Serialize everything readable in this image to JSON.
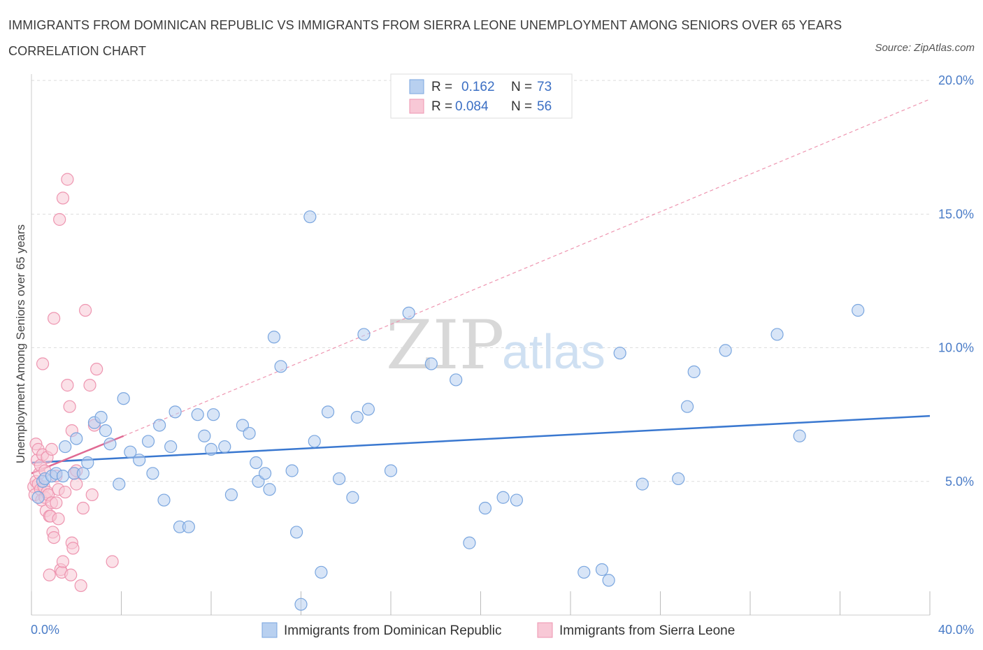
{
  "title": "IMMIGRANTS FROM DOMINICAN REPUBLIC VS IMMIGRANTS FROM SIERRA LEONE UNEMPLOYMENT AMONG SENIORS OVER 65 YEARS CORRELATION CHART",
  "source": "Source: ZipAtlas.com",
  "watermark": {
    "zip": "ZIP",
    "atlas": "atlas"
  },
  "colors": {
    "blue_fill": "#b8d0f0",
    "blue_stroke": "#7aa6df",
    "blue_line": "#3a78d0",
    "pink_fill": "#f8c8d6",
    "pink_stroke": "#ee95b0",
    "pink_line": "#e06a93",
    "grid": "#dddddd",
    "axis_text": "#4a7cc7"
  },
  "legend": {
    "r_label": "R =",
    "n_label": "N =",
    "series1": {
      "r": "0.162",
      "n": "73"
    },
    "series2": {
      "r": "0.084",
      "n": "56"
    }
  },
  "chart_data": {
    "type": "scatter",
    "title": "IMMIGRANTS FROM DOMINICAN REPUBLIC VS IMMIGRANTS FROM SIERRA LEONE UNEMPLOYMENT AMONG SENIORS OVER 65 YEARS CORRELATION CHART",
    "xlabel": "",
    "ylabel": "Unemployment Among Seniors over 65 years",
    "xlim": [
      0,
      40
    ],
    "ylim": [
      0,
      20.5
    ],
    "x_tick_labels": {
      "left": "0.0%",
      "right": "40.0%"
    },
    "y_ticks": [
      5,
      10,
      15,
      20
    ],
    "y_tick_labels": [
      "5.0%",
      "10.0%",
      "15.0%",
      "20.0%"
    ],
    "grid": true,
    "legend_position": "top-center",
    "series": [
      {
        "name": "Immigrants from Dominican Republic",
        "color": "blue",
        "r": 0.162,
        "n": 73,
        "trend": {
          "x": [
            0,
            40
          ],
          "y": [
            5.7,
            7.45
          ]
        },
        "points": [
          [
            0.3,
            4.4
          ],
          [
            0.5,
            5.0
          ],
          [
            0.6,
            5.1
          ],
          [
            0.9,
            5.2
          ],
          [
            1.1,
            5.3
          ],
          [
            1.4,
            5.2
          ],
          [
            1.5,
            6.3
          ],
          [
            1.9,
            5.3
          ],
          [
            2.0,
            6.6
          ],
          [
            2.3,
            5.3
          ],
          [
            2.5,
            5.7
          ],
          [
            2.8,
            7.2
          ],
          [
            3.1,
            7.4
          ],
          [
            3.3,
            6.9
          ],
          [
            3.5,
            6.4
          ],
          [
            3.9,
            4.9
          ],
          [
            4.1,
            8.1
          ],
          [
            4.4,
            6.1
          ],
          [
            4.8,
            5.8
          ],
          [
            5.2,
            6.5
          ],
          [
            5.4,
            5.3
          ],
          [
            5.7,
            7.1
          ],
          [
            5.9,
            4.3
          ],
          [
            6.2,
            6.3
          ],
          [
            6.4,
            7.6
          ],
          [
            6.6,
            3.3
          ],
          [
            7.0,
            3.3
          ],
          [
            7.4,
            7.5
          ],
          [
            7.7,
            6.7
          ],
          [
            8.0,
            6.2
          ],
          [
            8.1,
            7.5
          ],
          [
            8.6,
            6.3
          ],
          [
            8.9,
            4.5
          ],
          [
            9.4,
            7.1
          ],
          [
            9.7,
            6.8
          ],
          [
            10.0,
            5.7
          ],
          [
            10.1,
            5.0
          ],
          [
            10.4,
            5.3
          ],
          [
            10.6,
            4.7
          ],
          [
            10.8,
            10.4
          ],
          [
            11.1,
            9.3
          ],
          [
            11.6,
            5.4
          ],
          [
            11.8,
            3.1
          ],
          [
            12.0,
            0.4
          ],
          [
            12.4,
            14.9
          ],
          [
            12.6,
            6.5
          ],
          [
            12.9,
            1.6
          ],
          [
            13.2,
            7.6
          ],
          [
            13.7,
            5.1
          ],
          [
            14.3,
            4.4
          ],
          [
            14.5,
            7.4
          ],
          [
            14.8,
            10.5
          ],
          [
            15.0,
            7.7
          ],
          [
            16.0,
            5.4
          ],
          [
            16.8,
            11.3
          ],
          [
            17.8,
            9.4
          ],
          [
            18.9,
            8.8
          ],
          [
            19.5,
            2.7
          ],
          [
            20.2,
            4.0
          ],
          [
            21.0,
            4.4
          ],
          [
            21.6,
            4.3
          ],
          [
            24.6,
            1.6
          ],
          [
            25.4,
            1.7
          ],
          [
            25.7,
            1.3
          ],
          [
            26.2,
            9.8
          ],
          [
            27.2,
            4.9
          ],
          [
            28.8,
            5.1
          ],
          [
            29.2,
            7.8
          ],
          [
            29.5,
            9.1
          ],
          [
            30.9,
            9.9
          ],
          [
            33.2,
            10.5
          ],
          [
            34.2,
            6.7
          ],
          [
            36.8,
            11.4
          ]
        ]
      },
      {
        "name": "Immigrants from Sierra Leone",
        "color": "pink",
        "r": 0.084,
        "n": 56,
        "trend": {
          "x": [
            0,
            4.1
          ],
          "y": [
            5.3,
            6.7
          ]
        },
        "trend_dashed": {
          "x": [
            4.1,
            40
          ],
          "y": [
            6.7,
            19.3
          ]
        },
        "points": [
          [
            0.1,
            4.8
          ],
          [
            0.15,
            4.5
          ],
          [
            0.2,
            5.0
          ],
          [
            0.2,
            6.4
          ],
          [
            0.25,
            5.8
          ],
          [
            0.3,
            4.9
          ],
          [
            0.3,
            6.2
          ],
          [
            0.35,
            5.3
          ],
          [
            0.4,
            4.7
          ],
          [
            0.4,
            5.6
          ],
          [
            0.45,
            4.3
          ],
          [
            0.5,
            9.4
          ],
          [
            0.5,
            6.0
          ],
          [
            0.55,
            4.8
          ],
          [
            0.6,
            5.4
          ],
          [
            0.6,
            4.4
          ],
          [
            0.65,
            3.9
          ],
          [
            0.7,
            4.6
          ],
          [
            0.7,
            5.9
          ],
          [
            0.75,
            4.5
          ],
          [
            0.8,
            3.7
          ],
          [
            0.8,
            1.5
          ],
          [
            0.85,
            3.7
          ],
          [
            0.9,
            6.2
          ],
          [
            0.9,
            4.2
          ],
          [
            0.95,
            3.1
          ],
          [
            1.0,
            11.1
          ],
          [
            1.0,
            2.9
          ],
          [
            1.1,
            4.2
          ],
          [
            1.1,
            5.2
          ],
          [
            1.2,
            4.7
          ],
          [
            1.2,
            3.6
          ],
          [
            1.25,
            14.8
          ],
          [
            1.3,
            1.7
          ],
          [
            1.35,
            1.6
          ],
          [
            1.4,
            15.6
          ],
          [
            1.4,
            2.0
          ],
          [
            1.5,
            4.6
          ],
          [
            1.6,
            8.6
          ],
          [
            1.6,
            16.3
          ],
          [
            1.7,
            7.8
          ],
          [
            1.75,
            1.5
          ],
          [
            1.8,
            6.9
          ],
          [
            1.8,
            2.7
          ],
          [
            1.85,
            2.5
          ],
          [
            1.9,
            5.3
          ],
          [
            2.0,
            4.9
          ],
          [
            2.0,
            5.4
          ],
          [
            2.2,
            1.1
          ],
          [
            2.3,
            4.0
          ],
          [
            2.4,
            11.4
          ],
          [
            2.6,
            8.6
          ],
          [
            2.7,
            4.5
          ],
          [
            2.8,
            7.1
          ],
          [
            2.9,
            9.2
          ],
          [
            3.6,
            2.0
          ]
        ]
      }
    ]
  }
}
